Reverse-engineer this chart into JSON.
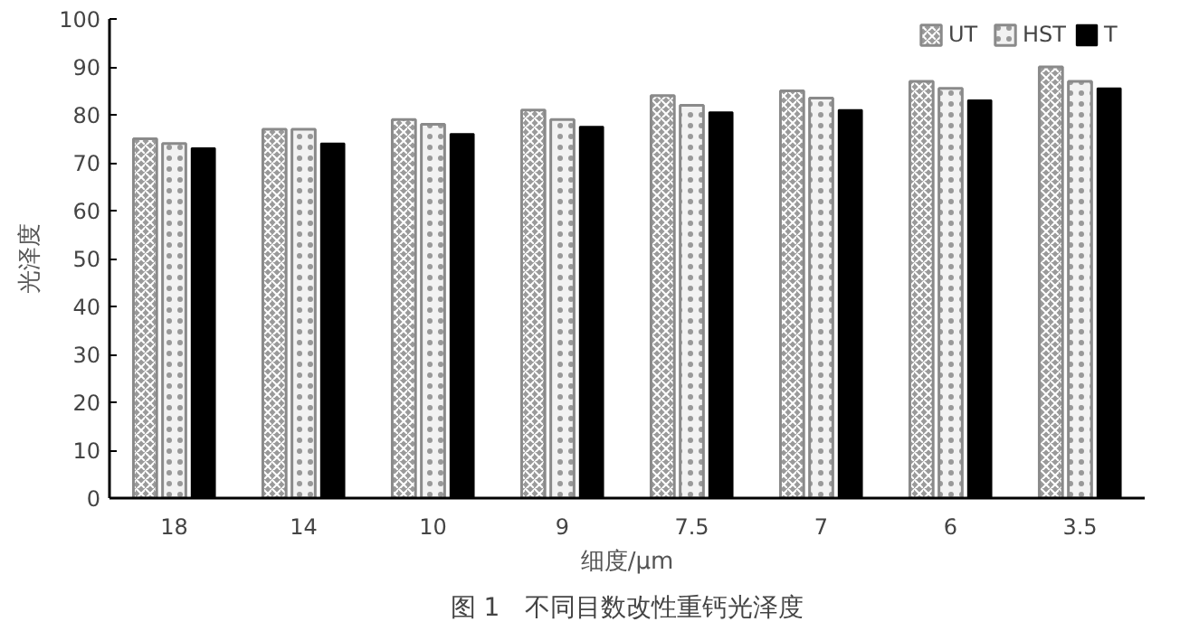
{
  "chart_data": {
    "type": "bar",
    "categories": [
      "18",
      "14",
      "10",
      "9",
      "7.5",
      "7",
      "6",
      "3.5"
    ],
    "xlabel": "细度/μm",
    "ylabel": "光泽度",
    "ylim": [
      0,
      100
    ],
    "yticks": [
      0,
      10,
      20,
      30,
      40,
      50,
      60,
      70,
      80,
      90,
      100
    ],
    "grid": false,
    "legend": "top right",
    "annotations": [
      "图 1　不同目数改性重钙光泽度"
    ],
    "series": [
      {
        "name": "UT",
        "color": "#9a9a9a",
        "values": [
          75,
          77,
          79,
          81,
          84,
          85,
          87,
          90
        ]
      },
      {
        "name": "HST",
        "color": "#f2f2f2",
        "values": [
          74,
          77,
          78,
          79,
          82,
          83.5,
          85.5,
          87
        ]
      },
      {
        "name": "T",
        "color": "#000000",
        "values": [
          73,
          74,
          76,
          77.5,
          80.5,
          81,
          83,
          85.5
        ]
      }
    ]
  }
}
